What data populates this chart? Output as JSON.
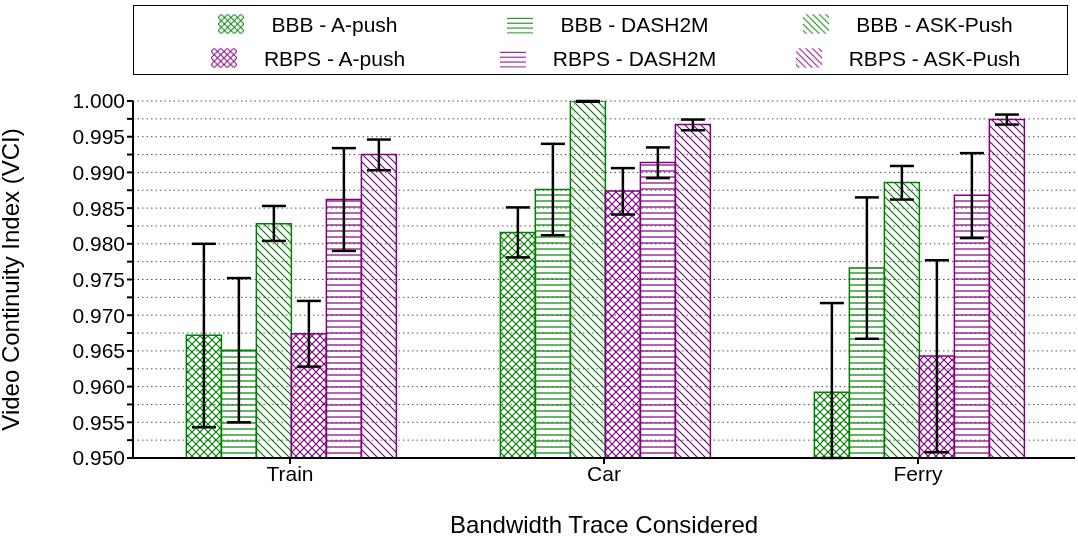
{
  "chart_data": {
    "type": "bar",
    "xlabel": "Bandwidth Trace Considered",
    "ylabel": "Video Continuity Index (VCI)",
    "categories": [
      "Train",
      "Car",
      "Ferry"
    ],
    "series": [
      {
        "name": "BBB - A-push",
        "color": "#008000",
        "values": [
          0.9672,
          0.9816,
          0.9592
        ],
        "errors": [
          [
            0.9543,
            0.98
          ],
          [
            0.9781,
            0.9851
          ],
          [
            0.95,
            0.9717
          ]
        ]
      },
      {
        "name": "BBB - DASH2M",
        "color": "#008000",
        "values": [
          0.9651,
          0.9876,
          0.9766
        ],
        "errors": [
          [
            0.955,
            0.9752
          ],
          [
            0.9812,
            0.994
          ],
          [
            0.9667,
            0.9865
          ]
        ]
      },
      {
        "name": "BBB - ASK-Push",
        "color": "#008000",
        "values": [
          0.9828,
          1.0,
          0.9886
        ],
        "errors": [
          [
            0.9804,
            0.9853
          ],
          [
            0.9999,
            1.0
          ],
          [
            0.9862,
            0.9909
          ]
        ]
      },
      {
        "name": "RBPS - A-push",
        "color": "#800080",
        "values": [
          0.9674,
          0.9874,
          0.9643
        ],
        "errors": [
          [
            0.9628,
            0.972
          ],
          [
            0.9841,
            0.9906
          ],
          [
            0.9508,
            0.9777
          ]
        ]
      },
      {
        "name": "RBPS - DASH2M",
        "color": "#800080",
        "values": [
          0.9862,
          0.9914,
          0.9868
        ],
        "errors": [
          [
            0.979,
            0.9934
          ],
          [
            0.9892,
            0.9935
          ],
          [
            0.9808,
            0.9927
          ]
        ]
      },
      {
        "name": "RBPS - ASK-Push",
        "color": "#800080",
        "values": [
          0.9925,
          0.9967,
          0.9974
        ],
        "errors": [
          [
            0.9903,
            0.9946
          ],
          [
            0.9959,
            0.9974
          ],
          [
            0.9967,
            0.9981
          ]
        ]
      }
    ],
    "ylim": [
      0.95,
      1.0
    ],
    "yticks": [
      {
        "value": 0.95,
        "label": "0.950"
      },
      {
        "value": 0.9525,
        "label": null
      },
      {
        "value": 0.955,
        "label": "0.955"
      },
      {
        "value": 0.9575,
        "label": null
      },
      {
        "value": 0.96,
        "label": "0.960"
      },
      {
        "value": 0.9625,
        "label": null
      },
      {
        "value": 0.965,
        "label": "0.965"
      },
      {
        "value": 0.9675,
        "label": null
      },
      {
        "value": 0.97,
        "label": "0.970"
      },
      {
        "value": 0.9725,
        "label": null
      },
      {
        "value": 0.975,
        "label": "0.975"
      },
      {
        "value": 0.9775,
        "label": null
      },
      {
        "value": 0.98,
        "label": "0.980"
      },
      {
        "value": 0.9825,
        "label": null
      },
      {
        "value": 0.985,
        "label": "0.985"
      },
      {
        "value": 0.9875,
        "label": null
      },
      {
        "value": 0.99,
        "label": "0.990"
      },
      {
        "value": 0.9925,
        "label": null
      },
      {
        "value": 0.995,
        "label": "0.995"
      },
      {
        "value": 0.9975,
        "label": null
      },
      {
        "value": 1.0,
        "label": "1.000"
      }
    ],
    "grid": "y",
    "legend": "top"
  }
}
